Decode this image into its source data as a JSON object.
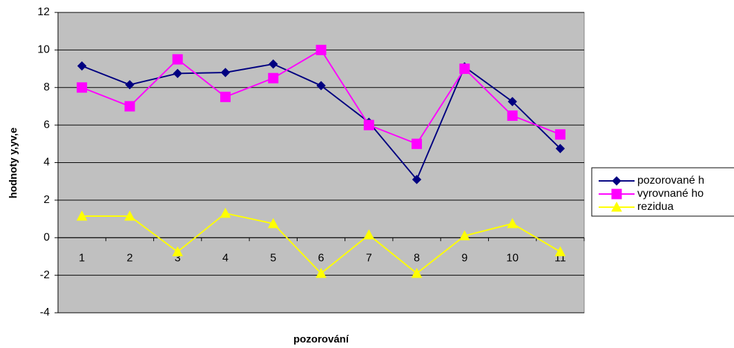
{
  "chart_data": {
    "type": "line",
    "x_label": "pozorování",
    "y_label": "hodnoty y,yv,e",
    "categories": [
      "1",
      "2",
      "3",
      "4",
      "5",
      "6",
      "7",
      "8",
      "9",
      "10",
      "11"
    ],
    "series": [
      {
        "name": "pozorované h",
        "color": "#000080",
        "marker": "diamond",
        "values": [
          9.15,
          8.15,
          8.75,
          8.8,
          9.25,
          8.1,
          6.15,
          3.1,
          9.1,
          7.25,
          4.75
        ]
      },
      {
        "name": "vyrovnané ho",
        "color": "#ff00ff",
        "marker": "square",
        "values": [
          8,
          7,
          9.5,
          7.5,
          8.5,
          10,
          6,
          5,
          9,
          6.5,
          5.5
        ]
      },
      {
        "name": "rezidua",
        "color": "#ffff00",
        "marker": "triangle",
        "values": [
          1.15,
          1.15,
          -0.75,
          1.3,
          0.75,
          -1.9,
          0.15,
          -1.9,
          0.1,
          0.75,
          -0.75
        ]
      }
    ],
    "ylim": [
      -4,
      12
    ],
    "yticks": [
      -4,
      -2,
      0,
      2,
      4,
      6,
      8,
      10,
      12
    ],
    "grid": true,
    "legend": "right"
  }
}
